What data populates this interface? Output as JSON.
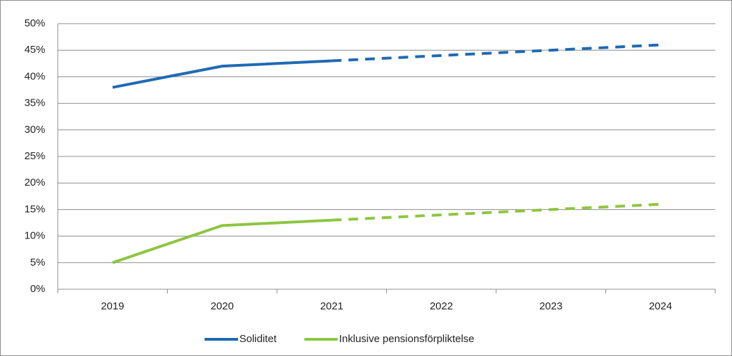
{
  "chart_data": {
    "type": "line",
    "categories": [
      "2019",
      "2020",
      "2021",
      "2022",
      "2023",
      "2024"
    ],
    "series": [
      {
        "name": "Soliditet",
        "color": "#1f6ab3",
        "values": [
          38,
          42,
          43,
          44,
          45,
          46
        ]
      },
      {
        "name": "Inklusive pensionsförpliktelse",
        "color": "#8dc63f",
        "values": [
          5,
          12,
          13,
          14,
          15,
          16
        ]
      }
    ],
    "dashed_from": "2021",
    "ylim": [
      0,
      50
    ],
    "yticks": [
      {
        "value": 0,
        "label": "0%"
      },
      {
        "value": 5,
        "label": "5%"
      },
      {
        "value": 10,
        "label": "10%"
      },
      {
        "value": 15,
        "label": "15%"
      },
      {
        "value": 20,
        "label": "20%"
      },
      {
        "value": 25,
        "label": "25%"
      },
      {
        "value": 30,
        "label": "30%"
      },
      {
        "value": 35,
        "label": "35%"
      },
      {
        "value": 40,
        "label": "40%"
      },
      {
        "value": 45,
        "label": "45%"
      },
      {
        "value": 50,
        "label": "50%"
      }
    ],
    "grid": true,
    "legend": "bottom"
  }
}
